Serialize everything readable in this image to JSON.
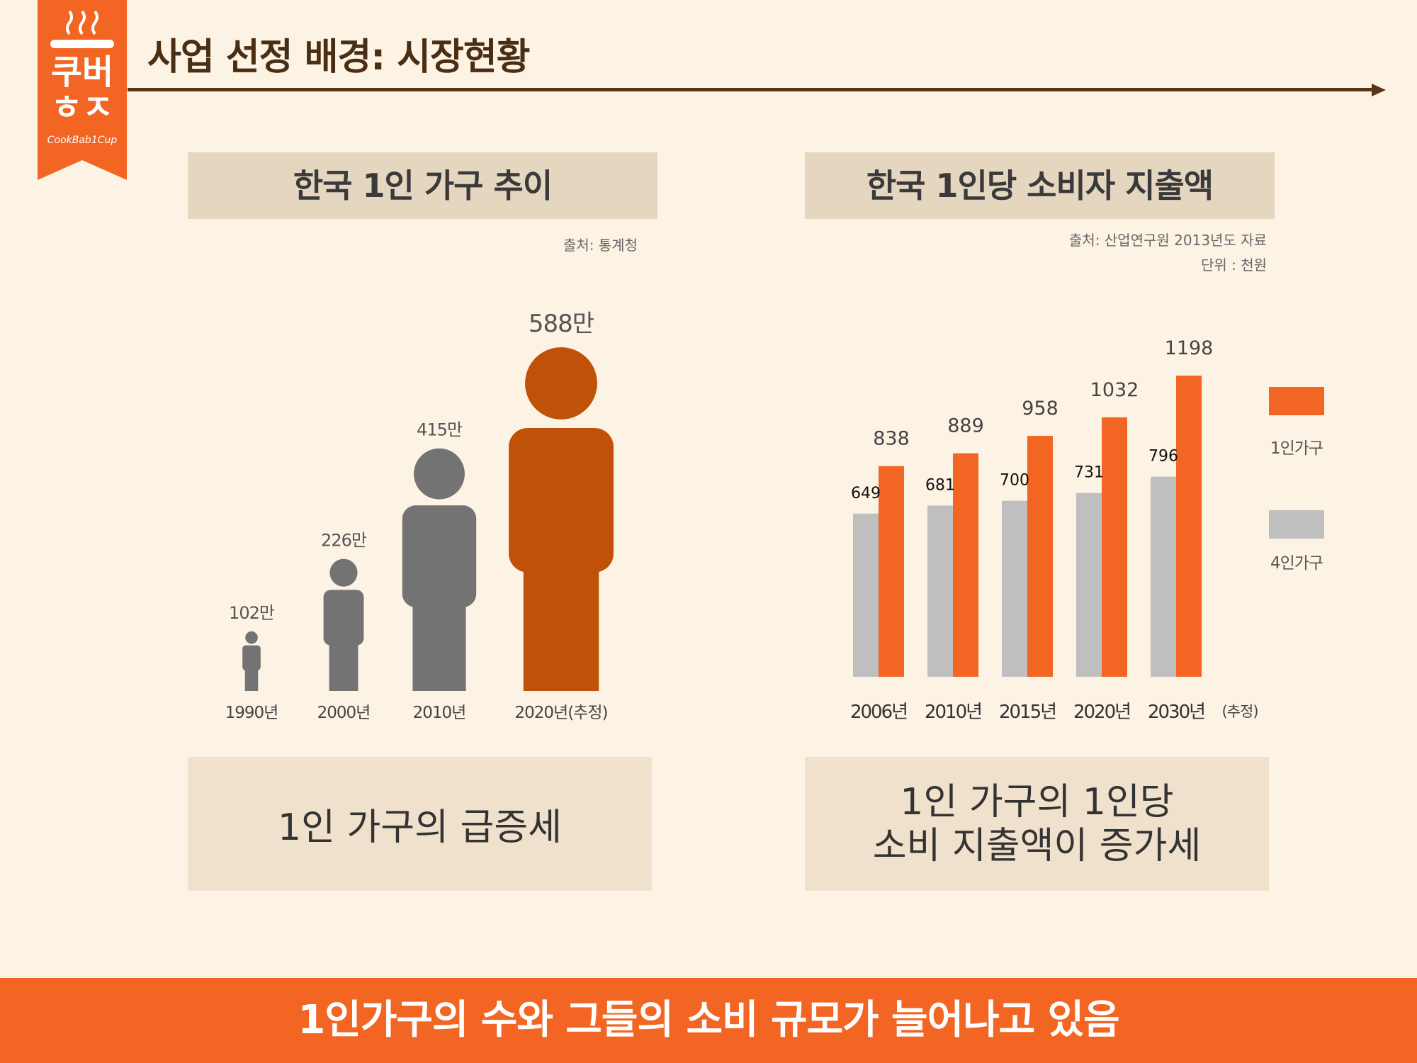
{
  "header": {
    "title": "사업 선정 배경: 시장현황"
  },
  "logo": {
    "line1": "쿠버",
    "line2": "ㅎㅈ",
    "script": "CookBab1Cup",
    "bg": "#f26522"
  },
  "left_panel": {
    "heading": "한국 1인 가구 추이",
    "source": "출처: 통계청",
    "summary": "1인 가구의 급증세"
  },
  "right_panel": {
    "heading": "한국 1인당 소비자 지출액",
    "source": "출처: 산업연구원 2013년도 자료",
    "unit": "단위 : 천원",
    "summary_line1": "1인 가구의 1인당",
    "summary_line2": "소비 지출액이 증가세"
  },
  "banner": {
    "text": "1인가구의 수와 그들의 소비 규모가 늘어나고 있음"
  },
  "colors": {
    "orange": "#f26522",
    "dark_orange": "#bf5208",
    "gray_figure": "#737373",
    "gray_bar": "#bfbfbf",
    "brown": "#5a3414"
  },
  "chart_data": [
    {
      "type": "bar",
      "style": "pictograph",
      "categories": [
        "1990년",
        "2000년",
        "2010년",
        "2020년(추정)"
      ],
      "values": [
        102,
        226,
        415,
        588
      ],
      "value_labels": [
        "102만",
        "226만",
        "415만",
        "588만"
      ],
      "highlight_index": 3
    },
    {
      "type": "bar",
      "categories": [
        "2006년",
        "2010년",
        "2015년",
        "2020년",
        "2030년"
      ],
      "axis_note": "(추정)",
      "series": [
        {
          "name": "4인가구",
          "values": [
            649,
            681,
            700,
            731,
            796
          ],
          "color": "#bfbfbf"
        },
        {
          "name": "1인가구",
          "values": [
            838,
            889,
            958,
            1032,
            1198
          ],
          "color": "#f26522"
        }
      ],
      "legend_position": "right",
      "ylim": [
        0,
        1198
      ]
    }
  ]
}
